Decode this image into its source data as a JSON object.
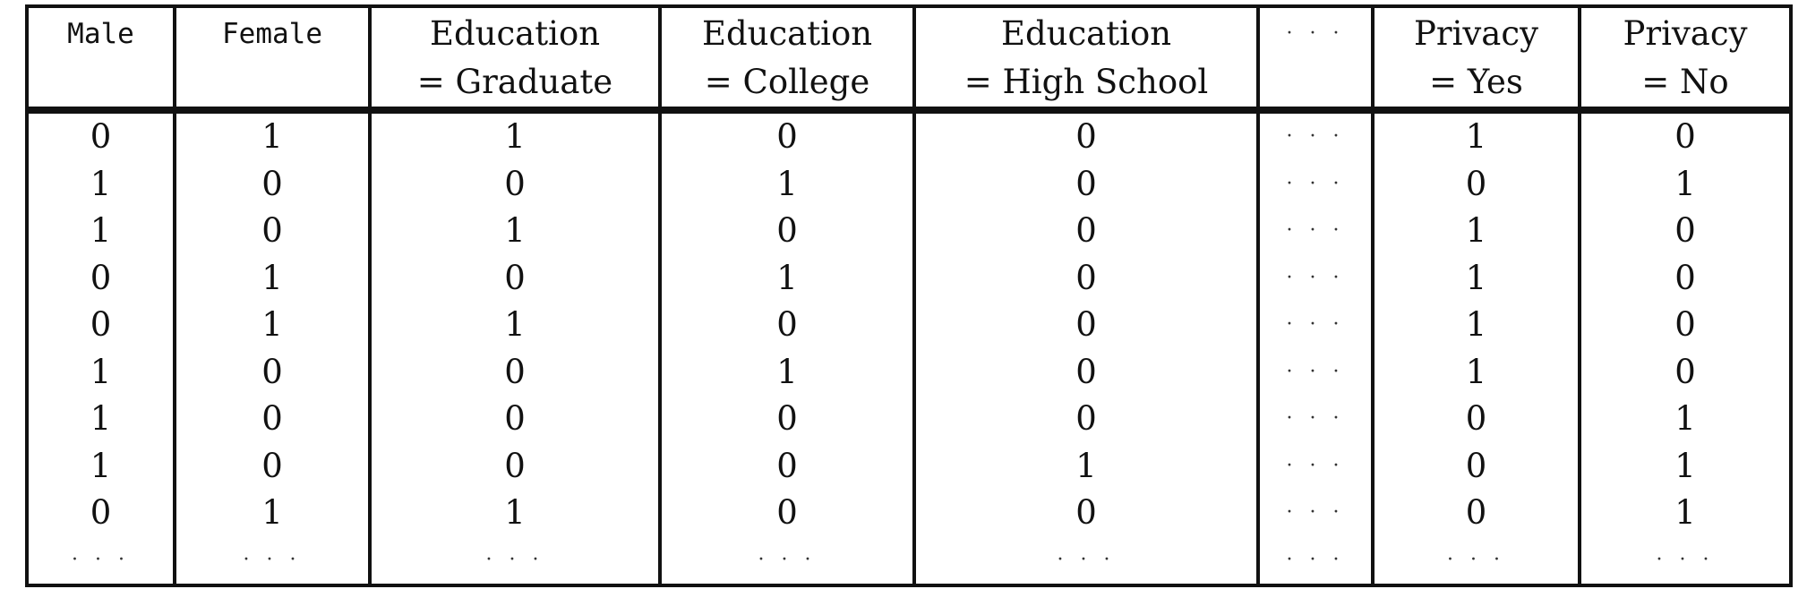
{
  "table": {
    "headers": [
      {
        "line1": "Male",
        "line2": "",
        "mono": true
      },
      {
        "line1": "Female",
        "line2": "",
        "mono": true
      },
      {
        "line1": "Education",
        "line2": "= Graduate",
        "mono": false
      },
      {
        "line1": "Education",
        "line2": "= College",
        "mono": false
      },
      {
        "line1": "Education",
        "line2": "= High School",
        "mono": false
      },
      {
        "line1": "· · ·",
        "line2": "",
        "mono": false
      },
      {
        "line1": "Privacy",
        "line2": "= Yes",
        "mono": false
      },
      {
        "line1": "Privacy",
        "line2": "= No",
        "mono": false
      }
    ],
    "rows": [
      [
        "0",
        "1",
        "1",
        "0",
        "0",
        "· · ·",
        "1",
        "0"
      ],
      [
        "1",
        "0",
        "0",
        "1",
        "0",
        "· · ·",
        "0",
        "1"
      ],
      [
        "1",
        "0",
        "1",
        "0",
        "0",
        "· · ·",
        "1",
        "0"
      ],
      [
        "0",
        "1",
        "0",
        "1",
        "0",
        "· · ·",
        "1",
        "0"
      ],
      [
        "0",
        "1",
        "1",
        "0",
        "0",
        "· · ·",
        "1",
        "0"
      ],
      [
        "1",
        "0",
        "0",
        "1",
        "0",
        "· · ·",
        "1",
        "0"
      ],
      [
        "1",
        "0",
        "0",
        "0",
        "0",
        "· · ·",
        "0",
        "1"
      ],
      [
        "1",
        "0",
        "0",
        "0",
        "1",
        "· · ·",
        "0",
        "1"
      ],
      [
        "0",
        "1",
        "1",
        "0",
        "0",
        "· · ·",
        "0",
        "1"
      ],
      [
        "· · ·",
        "· · ·",
        "· · ·",
        "· · ·",
        "· · ·",
        "· · ·",
        "· · ·",
        "· · ·"
      ]
    ]
  }
}
